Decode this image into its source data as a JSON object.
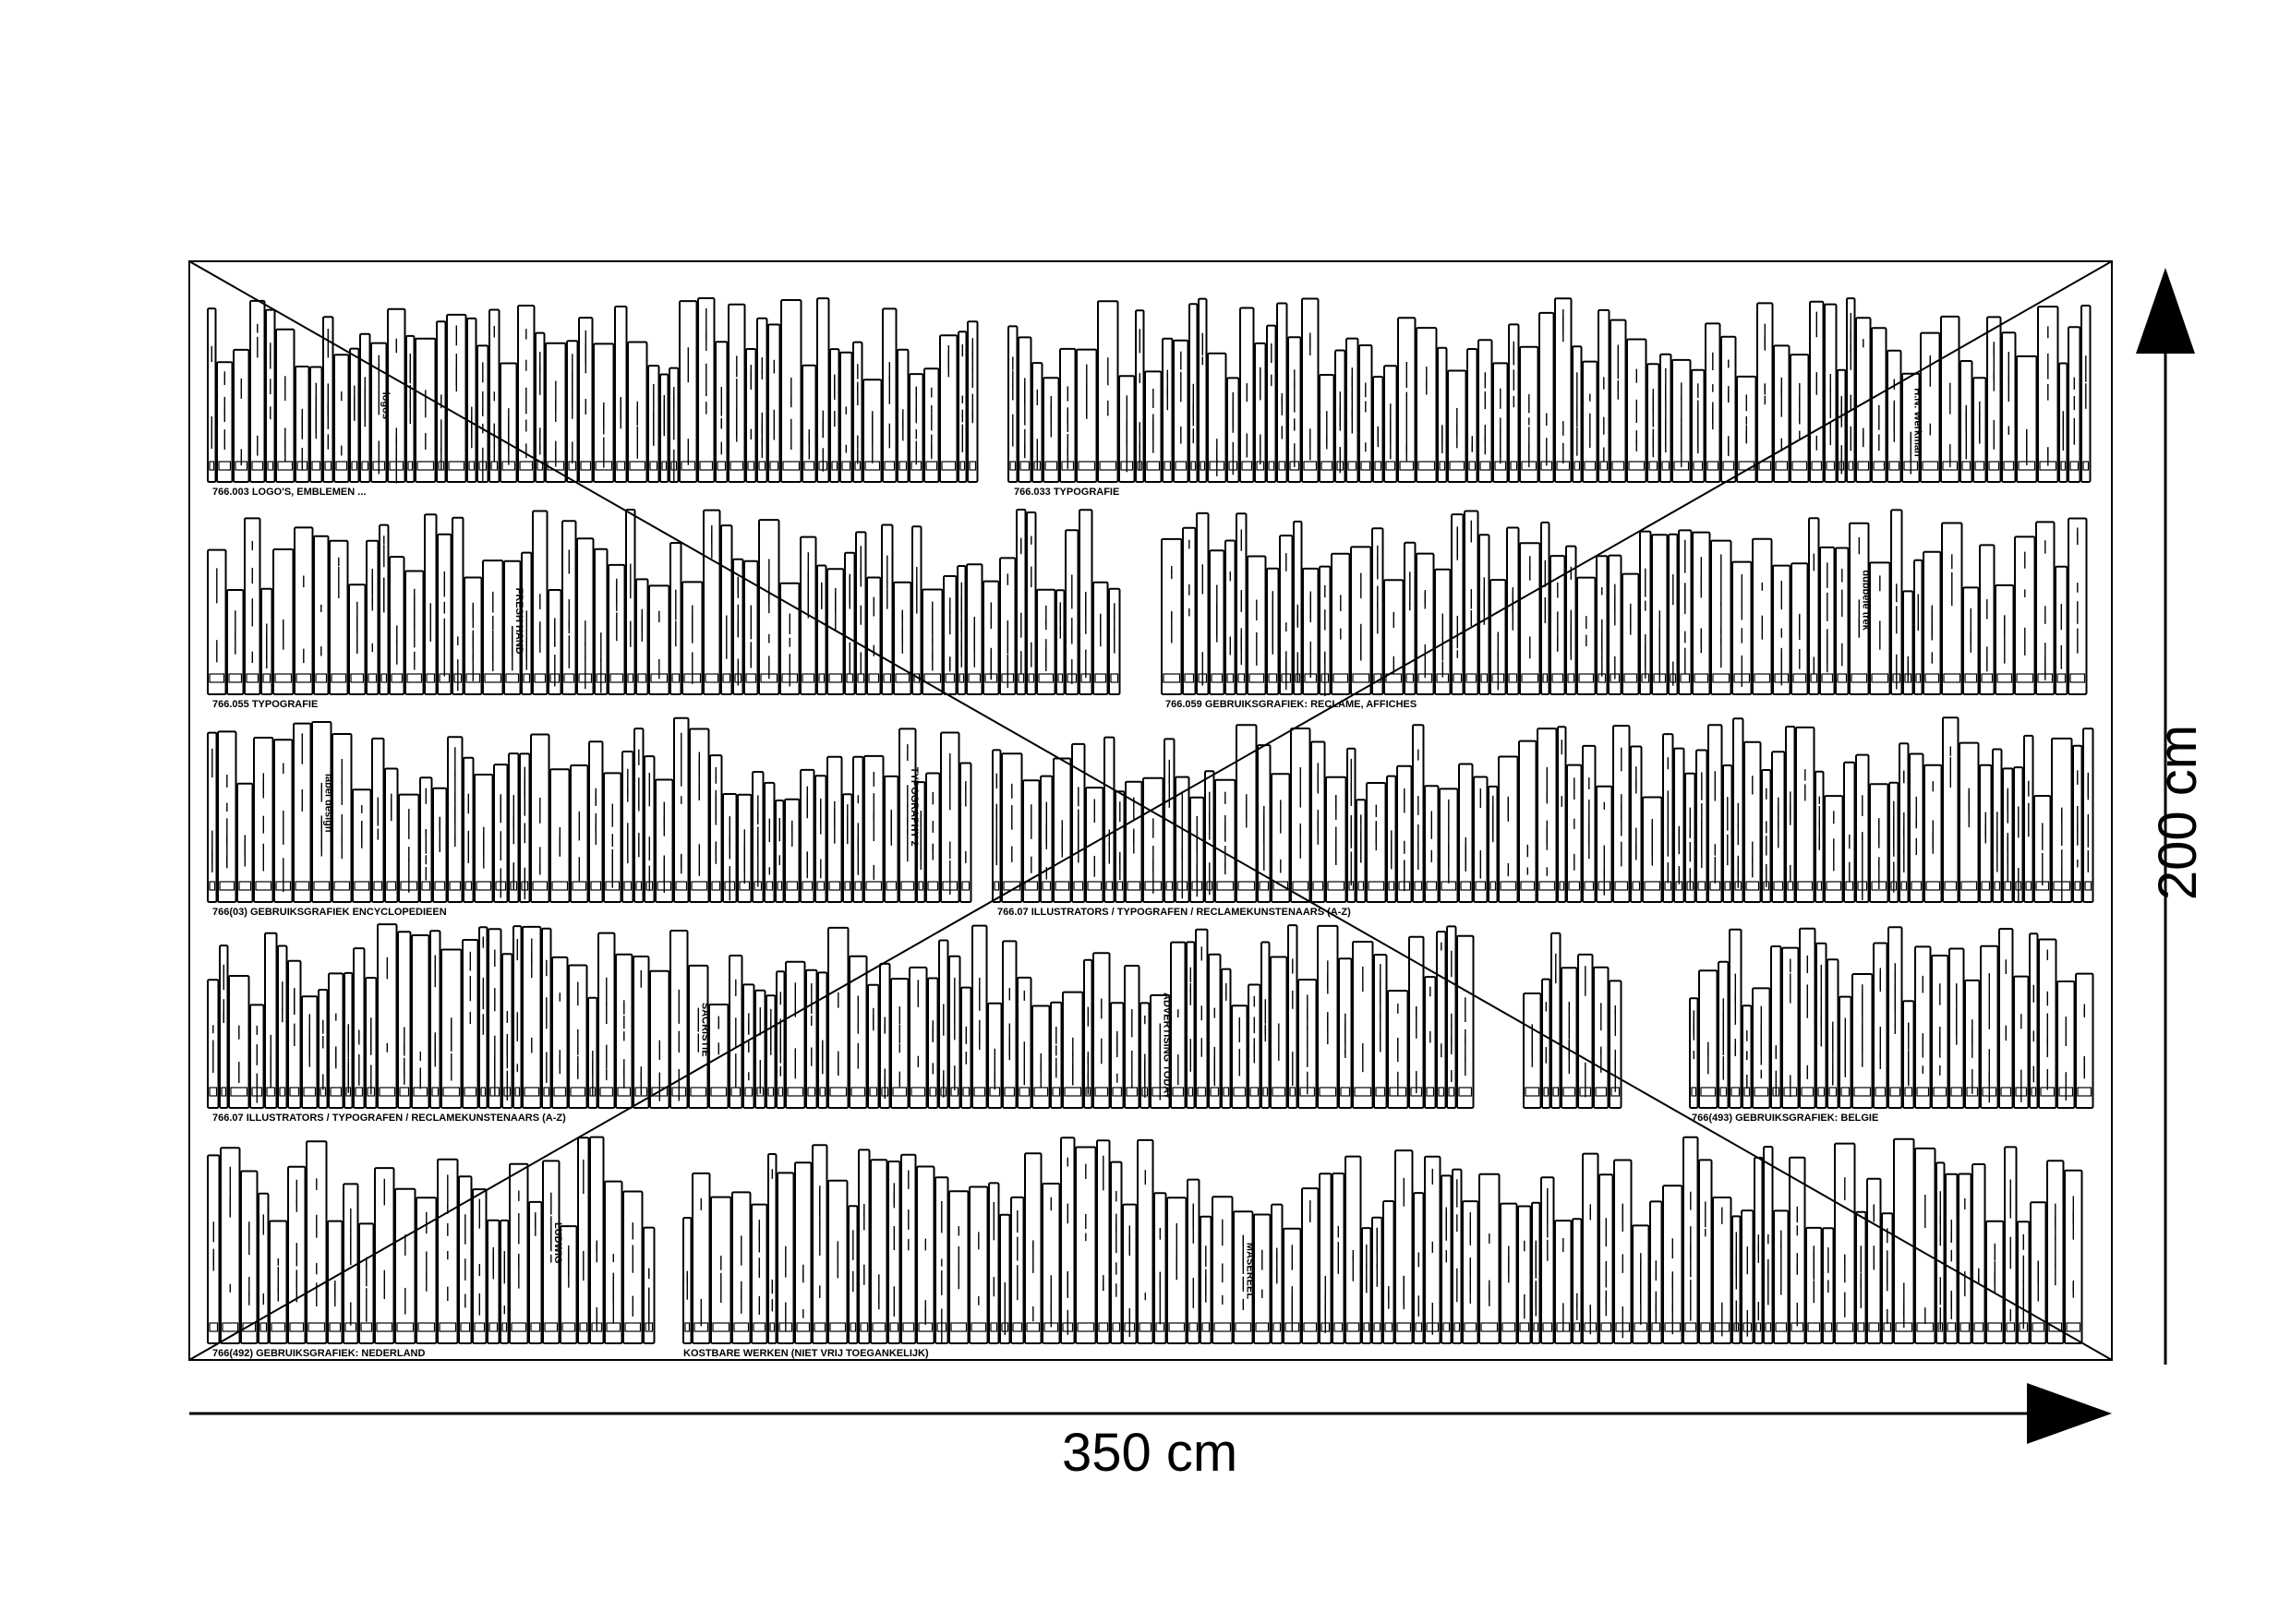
{
  "dimensions": {
    "width_label": "350 cm",
    "height_label": "200 cm"
  },
  "shelves": [
    {
      "sections": [
        {
          "label": "766.003  LOGO'S, EMBLEMEN ..."
        },
        {
          "label": "766.033  TYPOGRAFIE"
        }
      ]
    },
    {
      "sections": [
        {
          "label": "766.055  TYPOGRAFIE"
        },
        {
          "label": "766.059  GEBRUIKSGRAFIEK: RECLAME, AFFICHES"
        }
      ]
    },
    {
      "sections": [
        {
          "label": "766(03)  GEBRUIKSGRAFIEK ENCYCLOPEDIEEN"
        },
        {
          "label": "766.07  ILLUSTRATORS / TYPOGRAFEN / RECLAMEKUNSTENAARS (A-Z)"
        }
      ]
    },
    {
      "sections": [
        {
          "label": "766.07  ILLUSTRATORS / TYPOGRAFEN / RECLAMEKUNSTENAARS (A-Z)"
        },
        {
          "label": "766(493)  GEBRUIKSGRAFIEK: BELGIE"
        }
      ]
    },
    {
      "sections": [
        {
          "label": "766(492)  GEBRUIKSGRAFIEK: NEDERLAND"
        },
        {
          "label": "KOSTBARE WERKEN (NIET VRIJ TOEGANKELIJK)"
        }
      ]
    }
  ],
  "spine_titles": [
    "logos",
    "FRESH HAND",
    "TYPOGRAPHY 2",
    "ADVERTISING TODAY",
    "MASEREEL",
    "H.N. Werkman",
    "dubbele trek",
    "label design",
    "SACRISTIE",
    "LUDWIG"
  ]
}
